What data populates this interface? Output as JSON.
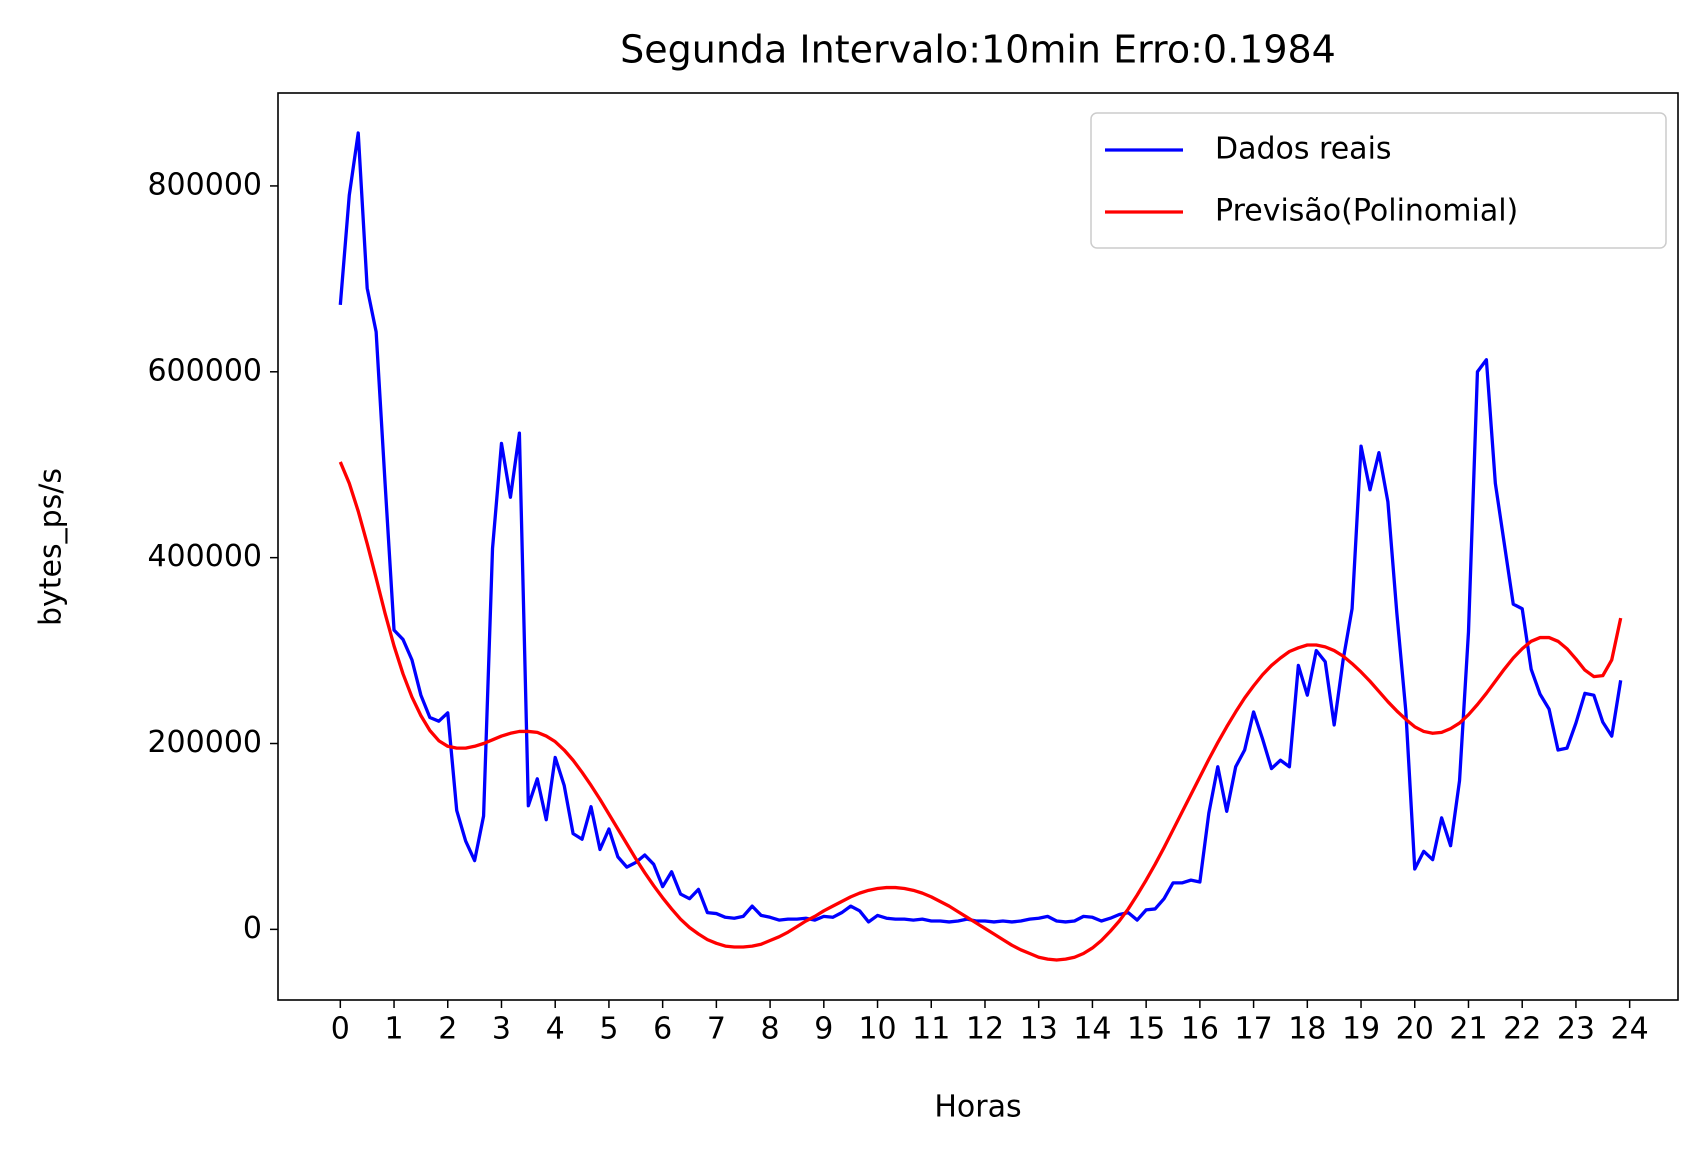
{
  "chart_data": {
    "type": "line",
    "title": "Segunda Intervalo:10min Erro:0.1984",
    "xlabel": "Horas",
    "ylabel": "bytes_ps/s",
    "x": [
      0,
      0.1667,
      0.3333,
      0.5,
      0.6667,
      0.8333,
      1,
      1.1667,
      1.3333,
      1.5,
      1.6667,
      1.8333,
      2,
      2.1667,
      2.3333,
      2.5,
      2.6667,
      2.8333,
      3,
      3.1667,
      3.3333,
      3.5,
      3.6667,
      3.8333,
      4,
      4.1667,
      4.3333,
      4.5,
      4.6667,
      4.8333,
      5,
      5.1667,
      5.3333,
      5.5,
      5.6667,
      5.8333,
      6,
      6.1667,
      6.3333,
      6.5,
      6.6667,
      6.8333,
      7,
      7.1667,
      7.3333,
      7.5,
      7.6667,
      7.8333,
      8,
      8.1667,
      8.3333,
      8.5,
      8.6667,
      8.8333,
      9,
      9.1667,
      9.3333,
      9.5,
      9.6667,
      9.8333,
      10,
      10.1667,
      10.3333,
      10.5,
      10.6667,
      10.8333,
      11,
      11.1667,
      11.3333,
      11.5,
      11.6667,
      11.8333,
      12,
      12.1667,
      12.3333,
      12.5,
      12.6667,
      12.8333,
      13,
      13.1667,
      13.3333,
      13.5,
      13.6667,
      13.8333,
      14,
      14.1667,
      14.3333,
      14.5,
      14.6667,
      14.8333,
      15,
      15.1667,
      15.3333,
      15.5,
      15.6667,
      15.8333,
      16,
      16.1667,
      16.3333,
      16.5,
      16.6667,
      16.8333,
      17,
      17.1667,
      17.3333,
      17.5,
      17.6667,
      17.8333,
      18,
      18.1667,
      18.3333,
      18.5,
      18.6667,
      18.8333,
      19,
      19.1667,
      19.3333,
      19.5,
      19.6667,
      19.8333,
      20,
      20.1667,
      20.3333,
      20.5,
      20.6667,
      20.8333,
      21,
      21.1667,
      21.3333,
      21.5,
      21.6667,
      21.8333,
      22,
      22.1667,
      22.3333,
      22.5,
      22.6667,
      22.8333,
      23,
      23.1667,
      23.3333,
      23.5,
      23.6667,
      23.8333
    ],
    "series": [
      {
        "name": "Dados reais",
        "color": "#0000ff",
        "values": [
          672000,
          790000,
          857000,
          690000,
          643000,
          480000,
          322000,
          312000,
          290000,
          252000,
          228000,
          224000,
          233000,
          128000,
          95000,
          74000,
          122000,
          410000,
          523000,
          465000,
          534000,
          133000,
          162000,
          118000,
          185000,
          155000,
          103000,
          97000,
          132000,
          86000,
          108000,
          78000,
          67000,
          72000,
          80000,
          70000,
          46000,
          62000,
          38000,
          33000,
          43000,
          18000,
          17000,
          13000,
          12000,
          14000,
          25000,
          15000,
          13000,
          10000,
          11000,
          11000,
          12000,
          10000,
          14000,
          13000,
          18000,
          25000,
          20000,
          8000,
          15000,
          12000,
          11000,
          11000,
          10000,
          11000,
          9000,
          9000,
          8000,
          9000,
          11000,
          9000,
          9000,
          8000,
          9000,
          8000,
          9000,
          11000,
          12000,
          14000,
          9000,
          8000,
          9000,
          14000,
          13000,
          9000,
          12000,
          16000,
          18000,
          10000,
          21000,
          22000,
          33000,
          50000,
          50000,
          53000,
          51000,
          125000,
          175000,
          127000,
          175000,
          193000,
          234000,
          205000,
          173000,
          182000,
          175000,
          284000,
          252000,
          300000,
          288000,
          220000,
          290000,
          345000,
          520000,
          473000,
          513000,
          460000,
          340000,
          235000,
          65000,
          84000,
          75000,
          120000,
          90000,
          160000,
          320000,
          600000,
          613000,
          480000,
          415000,
          350000,
          345000,
          280000,
          253000,
          237000,
          193000,
          195000,
          222000,
          254000,
          252000,
          223000,
          208000,
          268000
        ]
      },
      {
        "name": "Previsão(Polinomial)",
        "color": "#ff0000",
        "values": [
          503000,
          480000,
          450000,
          415000,
          378000,
          340000,
          305000,
          275000,
          250000,
          230000,
          214000,
          203000,
          197000,
          195000,
          195000,
          197000,
          200000,
          204000,
          208000,
          211000,
          213000,
          213000,
          212000,
          208000,
          202000,
          193000,
          182000,
          169000,
          155000,
          140000,
          124000,
          108000,
          92000,
          76000,
          61000,
          47000,
          34000,
          22000,
          11000,
          2000,
          -5000,
          -11000,
          -15000,
          -18000,
          -19000,
          -19000,
          -18000,
          -16000,
          -12000,
          -8000,
          -3000,
          3000,
          9000,
          14000,
          20000,
          25000,
          30000,
          35000,
          39000,
          42000,
          44000,
          45000,
          45000,
          44000,
          42000,
          39000,
          35000,
          30000,
          25000,
          19000,
          13000,
          7000,
          1000,
          -5000,
          -11000,
          -17000,
          -22000,
          -26000,
          -30000,
          -32000,
          -33000,
          -32000,
          -30000,
          -26000,
          -20000,
          -12000,
          -2000,
          9000,
          22000,
          37000,
          53000,
          70000,
          88000,
          107000,
          126000,
          145000,
          164000,
          183000,
          201000,
          218000,
          234000,
          249000,
          262000,
          274000,
          284000,
          292000,
          299000,
          303000,
          306000,
          306000,
          304000,
          300000,
          294000,
          286000,
          277000,
          267000,
          256000,
          245000,
          235000,
          226000,
          218000,
          213000,
          211000,
          212000,
          216000,
          222000,
          231000,
          242000,
          254000,
          267000,
          280000,
          292000,
          302000,
          310000,
          314000,
          314000,
          310000,
          302000,
          291000,
          279000,
          272000,
          273000,
          290000,
          335000
        ]
      }
    ],
    "xlim": [
      -1.16,
      24.9
    ],
    "xticks": [
      0,
      1,
      2,
      3,
      4,
      5,
      6,
      7,
      8,
      9,
      10,
      11,
      12,
      13,
      14,
      15,
      16,
      17,
      18,
      19,
      20,
      21,
      22,
      23,
      24
    ],
    "ylim": [
      -76000,
      900000
    ],
    "yticks": [
      0,
      200000,
      400000,
      600000,
      800000
    ],
    "legend": "upper right"
  }
}
